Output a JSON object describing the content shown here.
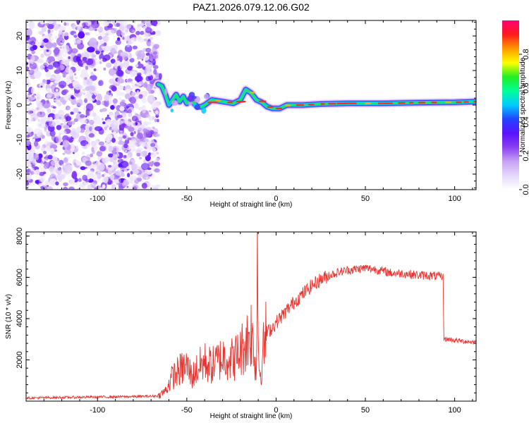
{
  "title": "PAZ1.2026.079.12.06.G02",
  "chart_data": [
    {
      "type": "heatmap",
      "name": "spectrogram",
      "xlabel": "Height of straight line (km)",
      "ylabel": "Frequency (Hz)",
      "xlim": [
        -140,
        112
      ],
      "ylim": [
        -24.5,
        24.5
      ],
      "xticks": [
        "-100",
        "-50",
        "0",
        "50",
        "100"
      ],
      "xtick_values": [
        -100,
        -50,
        0,
        50,
        100
      ],
      "yticks": [
        "20",
        "10",
        "0",
        "-10",
        "-20"
      ],
      "ytick_values": [
        20,
        10,
        0,
        -10,
        -20
      ],
      "noise_region_x": [
        -140,
        -66
      ],
      "signal_trace": [
        {
          "x": -66,
          "y": 6.0
        },
        {
          "x": -64,
          "y": 5.5
        },
        {
          "x": -62,
          "y": 3.0
        },
        {
          "x": -60,
          "y": 0.0
        },
        {
          "x": -58,
          "y": 1.5
        },
        {
          "x": -56,
          "y": 3.0
        },
        {
          "x": -54,
          "y": 1.0
        },
        {
          "x": -52,
          "y": 2.5
        },
        {
          "x": -50,
          "y": 0.5
        },
        {
          "x": -48,
          "y": 2.0
        },
        {
          "x": -46,
          "y": 0.5
        },
        {
          "x": -44,
          "y": -0.5
        },
        {
          "x": -42,
          "y": -0.5
        },
        {
          "x": -40,
          "y": 0.0
        },
        {
          "x": -36,
          "y": 1.5
        },
        {
          "x": -30,
          "y": 1.0
        },
        {
          "x": -24,
          "y": 0.5
        },
        {
          "x": -20,
          "y": 1.5
        },
        {
          "x": -17,
          "y": 4.5
        },
        {
          "x": -14,
          "y": 3.5
        },
        {
          "x": -11,
          "y": 1.5
        },
        {
          "x": -8,
          "y": 0.8
        },
        {
          "x": -5,
          "y": -0.5
        },
        {
          "x": -2,
          "y": -1.0
        },
        {
          "x": 2,
          "y": -1.0
        },
        {
          "x": 6,
          "y": 0.0
        },
        {
          "x": 15,
          "y": 0.0
        },
        {
          "x": 25,
          "y": 0.3
        },
        {
          "x": 40,
          "y": 0.5
        },
        {
          "x": 60,
          "y": 0.5
        },
        {
          "x": 80,
          "y": 0.7
        },
        {
          "x": 100,
          "y": 0.8
        },
        {
          "x": 112,
          "y": 1.0
        }
      ],
      "colorbar": {
        "label": "Normalized spectral amplitude",
        "range": [
          0.0,
          1.0
        ],
        "ticks": [
          "0.0",
          "0.2",
          "0.4",
          "0.6",
          "0.8"
        ],
        "tick_values": [
          0.0,
          0.2,
          0.4,
          0.6,
          0.8
        ],
        "colors": [
          "#ffffff",
          "#e6d8fb",
          "#c8a2f5",
          "#8a3ff0",
          "#5a12ff",
          "#2244ff",
          "#00ccff",
          "#00ff99",
          "#22ee22",
          "#ffff00",
          "#ff9900",
          "#ff1a1a",
          "#ff0077"
        ]
      }
    },
    {
      "type": "line",
      "name": "snr",
      "xlabel": "Height of straight line (km)",
      "ylabel": "SNR (10 * v/v)",
      "xlim": [
        -140,
        112
      ],
      "ylim": [
        0,
        8200
      ],
      "xticks": [
        "-100",
        "-50",
        "0",
        "50",
        "100"
      ],
      "xtick_values": [
        -100,
        -50,
        0,
        50,
        100
      ],
      "yticks": [
        "2000",
        "4000",
        "6000",
        "8000"
      ],
      "ytick_values": [
        2000,
        4000,
        6000,
        8000
      ],
      "color": "#e8332e",
      "series": [
        {
          "name": "SNR",
          "x": [
            -140,
            -120,
            -100,
            -80,
            -66,
            -62,
            -58,
            -54,
            -50,
            -47,
            -44,
            -40,
            -36,
            -32,
            -28,
            -24,
            -20,
            -16,
            -14,
            -12,
            -11,
            -10.5,
            -10,
            -9,
            -6,
            -2,
            0,
            5,
            10,
            15,
            20,
            25,
            30,
            35,
            40,
            45,
            50,
            55,
            60,
            65,
            70,
            75,
            80,
            85,
            90,
            92,
            93.5,
            94,
            97,
            100,
            105,
            112
          ],
          "y": [
            150,
            180,
            200,
            220,
            250,
            500,
            1200,
            1500,
            1700,
            1200,
            1600,
            1900,
            1700,
            2000,
            2200,
            2000,
            2400,
            3000,
            3400,
            2200,
            1400,
            8200,
            3000,
            1200,
            3200,
            3600,
            3800,
            4300,
            4800,
            5200,
            5600,
            5900,
            6100,
            6250,
            6350,
            6400,
            6450,
            6400,
            6300,
            6200,
            6200,
            6150,
            6100,
            6100,
            6050,
            6050,
            6000,
            3000,
            3000,
            2950,
            2900,
            2850
          ]
        }
      ]
    }
  ]
}
